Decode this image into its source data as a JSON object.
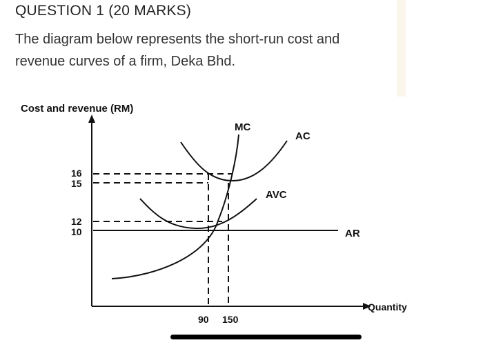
{
  "question": {
    "title": "QUESTION 1 (20 MARKS)",
    "body": "The diagram below represents the short-run cost and revenue curves of a firm, Deka Bhd."
  },
  "diagram": {
    "y_axis_label": "Cost and revenue (RM)",
    "x_axis_label": "Quantity",
    "y_ticks": [
      "16",
      "15",
      "12",
      "10"
    ],
    "x_ticks": [
      "90",
      "150"
    ],
    "curves": {
      "mc": "MC",
      "ac": "AC",
      "avc": "AVC",
      "ar": "AR"
    }
  }
}
